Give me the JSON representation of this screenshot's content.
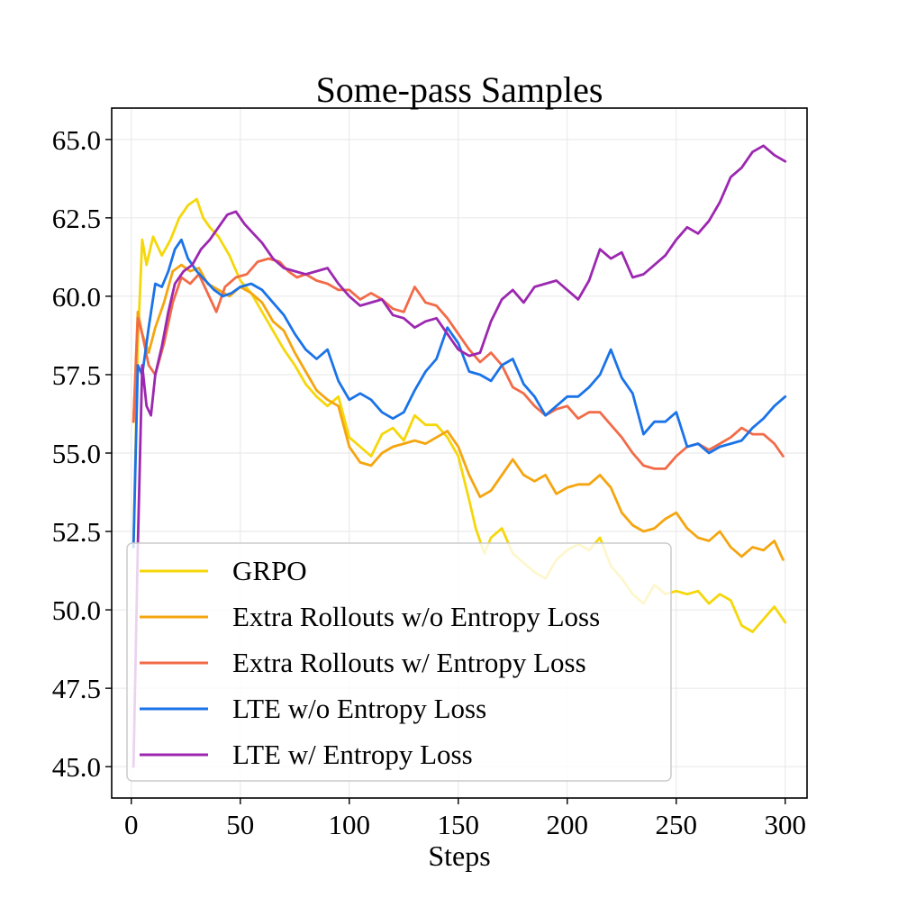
{
  "chart_data": {
    "type": "line",
    "title": "Some-pass Samples",
    "xlabel": "Steps",
    "ylabel": "",
    "xlim": [
      -9,
      310
    ],
    "ylim": [
      44.0,
      66.0
    ],
    "xticks": [
      0,
      50,
      100,
      150,
      200,
      250,
      300
    ],
    "xtick_labels": [
      "0",
      "50",
      "100",
      "150",
      "200",
      "250",
      "300"
    ],
    "yticks": [
      45.0,
      47.5,
      50.0,
      52.5,
      55.0,
      57.5,
      60.0,
      62.5,
      65.0
    ],
    "ytick_labels": [
      "45.0",
      "47.5",
      "50.0",
      "52.5",
      "55.0",
      "57.5",
      "60.0",
      "62.5",
      "65.0"
    ],
    "grid": true,
    "legend_position": "bottom-left",
    "series": [
      {
        "name": "GRPO",
        "color": "#F5D70A",
        "x": [
          1,
          3,
          5,
          7,
          10,
          14,
          18,
          22,
          26,
          30,
          33,
          36,
          40,
          45,
          50,
          55,
          60,
          65,
          70,
          75,
          80,
          85,
          90,
          95,
          100,
          105,
          110,
          115,
          120,
          125,
          130,
          135,
          140,
          145,
          150,
          155,
          158,
          162,
          165,
          170,
          175,
          180,
          185,
          190,
          195,
          200,
          205,
          210,
          215,
          220,
          225,
          230,
          235,
          240,
          245,
          250,
          255,
          260,
          265,
          270,
          275,
          280,
          285,
          290,
          295,
          300
        ],
        "values": [
          52.0,
          58.5,
          61.8,
          61.0,
          61.9,
          61.3,
          61.8,
          62.5,
          62.9,
          63.1,
          62.5,
          62.2,
          61.9,
          61.3,
          60.5,
          60.1,
          59.5,
          58.9,
          58.3,
          57.8,
          57.2,
          56.8,
          56.5,
          56.8,
          55.5,
          55.2,
          54.9,
          55.6,
          55.8,
          55.4,
          56.2,
          55.9,
          55.9,
          55.5,
          54.9,
          53.5,
          52.6,
          51.8,
          52.3,
          52.6,
          51.8,
          51.5,
          51.2,
          51.0,
          51.6,
          51.9,
          52.1,
          51.9,
          52.3,
          51.4,
          51.0,
          50.5,
          50.2,
          50.8,
          50.5,
          50.6,
          50.5,
          50.6,
          50.2,
          50.5,
          50.3,
          49.5,
          49.3,
          49.7,
          50.1,
          49.6
        ]
      },
      {
        "name": "Extra Rollouts w/o Entropy Loss",
        "color": "#F5A50F",
        "x": [
          1,
          3,
          5,
          8,
          11,
          15,
          19,
          23,
          27,
          31,
          35,
          40,
          45,
          50,
          55,
          60,
          65,
          70,
          75,
          80,
          85,
          90,
          95,
          100,
          105,
          110,
          115,
          120,
          125,
          130,
          135,
          140,
          145,
          150,
          155,
          160,
          165,
          170,
          175,
          180,
          185,
          190,
          195,
          200,
          205,
          210,
          215,
          220,
          225,
          230,
          235,
          240,
          245,
          250,
          255,
          260,
          265,
          270,
          275,
          280,
          285,
          290,
          295,
          299
        ],
        "values": [
          56.0,
          59.5,
          58.8,
          58.2,
          59.0,
          59.8,
          60.8,
          61.0,
          60.8,
          60.9,
          60.4,
          60.2,
          60.0,
          60.3,
          60.1,
          59.8,
          59.2,
          58.9,
          58.2,
          57.6,
          57.0,
          56.7,
          56.5,
          55.2,
          54.7,
          54.6,
          55.0,
          55.2,
          55.3,
          55.4,
          55.3,
          55.5,
          55.7,
          55.2,
          54.3,
          53.6,
          53.8,
          54.3,
          54.8,
          54.3,
          54.1,
          54.3,
          53.7,
          53.9,
          54.0,
          54.0,
          54.3,
          53.9,
          53.1,
          52.7,
          52.5,
          52.6,
          52.9,
          53.1,
          52.6,
          52.3,
          52.2,
          52.5,
          52.0,
          51.7,
          52.0,
          51.9,
          52.2,
          51.6
        ]
      },
      {
        "name": "Extra Rollouts w/ Entropy Loss",
        "color": "#F26B48",
        "x": [
          1,
          3,
          5,
          8,
          11,
          15,
          19,
          23,
          27,
          31,
          35,
          39,
          43,
          48,
          53,
          58,
          63,
          68,
          72,
          76,
          80,
          85,
          90,
          95,
          100,
          105,
          110,
          115,
          120,
          125,
          130,
          135,
          140,
          145,
          150,
          155,
          160,
          165,
          170,
          175,
          180,
          185,
          190,
          195,
          200,
          205,
          210,
          215,
          220,
          225,
          230,
          235,
          240,
          245,
          250,
          255,
          260,
          265,
          270,
          275,
          280,
          285,
          290,
          295,
          299
        ],
        "values": [
          56.0,
          59.3,
          58.8,
          57.8,
          57.5,
          58.5,
          59.8,
          60.6,
          60.4,
          60.7,
          60.1,
          59.5,
          60.3,
          60.6,
          60.7,
          61.1,
          61.2,
          61.1,
          60.8,
          60.6,
          60.7,
          60.5,
          60.4,
          60.2,
          60.2,
          59.9,
          60.1,
          59.9,
          59.6,
          59.5,
          60.3,
          59.8,
          59.7,
          59.3,
          58.8,
          58.3,
          57.9,
          58.2,
          57.8,
          57.1,
          56.9,
          56.5,
          56.2,
          56.4,
          56.5,
          56.1,
          56.3,
          56.3,
          55.9,
          55.5,
          55.0,
          54.6,
          54.5,
          54.5,
          54.9,
          55.2,
          55.3,
          55.1,
          55.3,
          55.5,
          55.8,
          55.6,
          55.6,
          55.3,
          54.9
        ]
      },
      {
        "name": "LTE w/o Entropy Loss",
        "color": "#1A73E8",
        "x": [
          1,
          3,
          5,
          8,
          11,
          14,
          17,
          20,
          23,
          26,
          30,
          34,
          38,
          42,
          46,
          50,
          55,
          60,
          65,
          70,
          75,
          80,
          85,
          90,
          95,
          100,
          105,
          110,
          115,
          120,
          125,
          130,
          135,
          140,
          145,
          150,
          155,
          160,
          165,
          170,
          175,
          180,
          185,
          190,
          195,
          200,
          205,
          210,
          215,
          220,
          225,
          230,
          235,
          240,
          245,
          250,
          255,
          260,
          265,
          270,
          275,
          280,
          285,
          290,
          295,
          300
        ],
        "values": [
          52.0,
          57.8,
          57.5,
          59.0,
          60.4,
          60.3,
          60.8,
          61.5,
          61.8,
          61.2,
          60.8,
          60.5,
          60.2,
          60.0,
          60.1,
          60.3,
          60.4,
          60.2,
          59.8,
          59.4,
          58.8,
          58.3,
          58.0,
          58.3,
          57.3,
          56.7,
          56.9,
          56.7,
          56.3,
          56.1,
          56.3,
          57.0,
          57.6,
          58.0,
          59.0,
          58.5,
          57.6,
          57.5,
          57.3,
          57.8,
          58.0,
          57.2,
          56.8,
          56.2,
          56.5,
          56.8,
          56.8,
          57.1,
          57.5,
          58.3,
          57.4,
          56.9,
          55.6,
          56.0,
          56.0,
          56.3,
          55.2,
          55.3,
          55.0,
          55.2,
          55.3,
          55.4,
          55.8,
          56.1,
          56.5,
          56.8
        ]
      },
      {
        "name": "LTE w/ Entropy Loss",
        "color": "#9C27B0",
        "x": [
          1,
          3,
          5,
          7,
          9,
          11,
          14,
          17,
          20,
          24,
          28,
          32,
          36,
          40,
          44,
          48,
          52,
          56,
          60,
          65,
          70,
          75,
          80,
          85,
          90,
          95,
          100,
          105,
          110,
          115,
          120,
          125,
          130,
          135,
          140,
          145,
          150,
          155,
          160,
          165,
          170,
          175,
          180,
          185,
          190,
          195,
          200,
          205,
          210,
          215,
          220,
          225,
          230,
          235,
          240,
          245,
          250,
          255,
          260,
          265,
          270,
          275,
          280,
          285,
          290,
          295,
          300
        ],
        "values": [
          45.0,
          52.0,
          57.8,
          56.5,
          56.2,
          57.5,
          58.4,
          59.5,
          60.4,
          60.8,
          61.0,
          61.5,
          61.8,
          62.2,
          62.6,
          62.7,
          62.3,
          62.0,
          61.7,
          61.2,
          60.9,
          60.8,
          60.7,
          60.8,
          60.9,
          60.4,
          60.0,
          59.7,
          59.8,
          59.9,
          59.4,
          59.3,
          59.0,
          59.2,
          59.3,
          58.8,
          58.3,
          58.1,
          58.2,
          59.2,
          59.9,
          60.2,
          59.8,
          60.3,
          60.4,
          60.5,
          60.2,
          59.9,
          60.5,
          61.5,
          61.2,
          61.4,
          60.6,
          60.7,
          61.0,
          61.3,
          61.8,
          62.2,
          62.0,
          62.4,
          63.0,
          63.8,
          64.1,
          64.6,
          64.8,
          64.5,
          64.3
        ]
      }
    ]
  }
}
